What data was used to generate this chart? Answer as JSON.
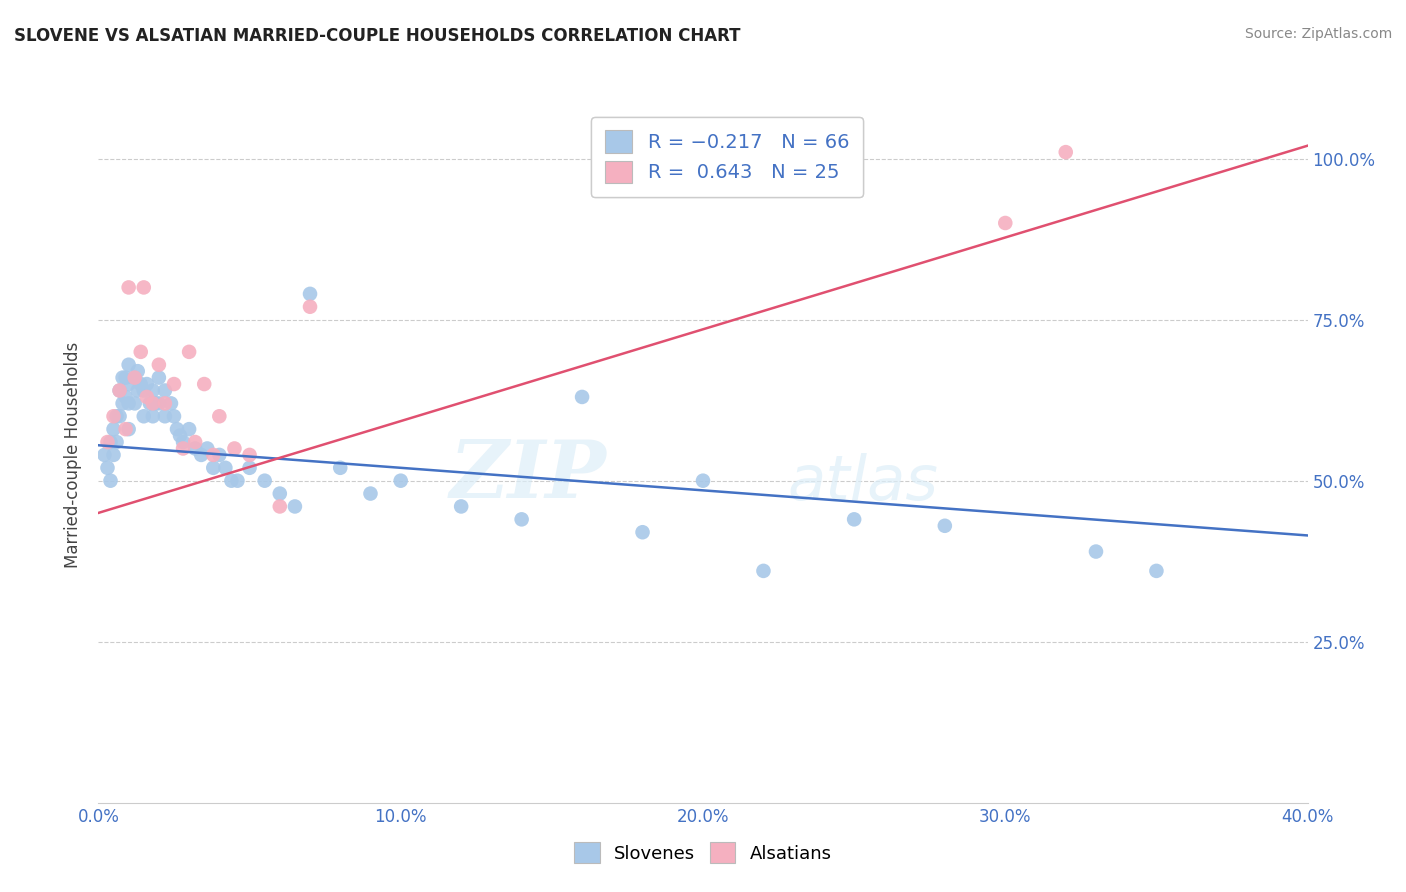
{
  "title": "SLOVENE VS ALSATIAN MARRIED-COUPLE HOUSEHOLDS CORRELATION CHART",
  "source": "Source: ZipAtlas.com",
  "xlabel_ticks": [
    "0.0%",
    "10.0%",
    "20.0%",
    "30.0%",
    "40.0%"
  ],
  "xlabel_tick_vals": [
    0.0,
    0.1,
    0.2,
    0.3,
    0.4
  ],
  "ylabel_ticks": [
    "25.0%",
    "50.0%",
    "75.0%",
    "100.0%"
  ],
  "ylabel_tick_vals": [
    0.25,
    0.5,
    0.75,
    1.0
  ],
  "ylabel_label": "Married-couple Households",
  "xlim": [
    0.0,
    0.4
  ],
  "ylim": [
    0.0,
    1.08
  ],
  "slovene_color": "#a8c8e8",
  "alsatian_color": "#f5b0c0",
  "slovene_line_color": "#4472c4",
  "alsatian_line_color": "#e05070",
  "watermark_zip": "ZIP",
  "watermark_atlas": "atlas",
  "slovene_x": [
    0.002,
    0.003,
    0.004,
    0.004,
    0.005,
    0.005,
    0.006,
    0.006,
    0.007,
    0.007,
    0.008,
    0.008,
    0.009,
    0.009,
    0.01,
    0.01,
    0.01,
    0.01,
    0.012,
    0.012,
    0.013,
    0.013,
    0.014,
    0.015,
    0.015,
    0.016,
    0.017,
    0.018,
    0.018,
    0.019,
    0.02,
    0.02,
    0.022,
    0.022,
    0.024,
    0.025,
    0.026,
    0.027,
    0.028,
    0.03,
    0.032,
    0.034,
    0.036,
    0.038,
    0.04,
    0.042,
    0.044,
    0.046,
    0.05,
    0.055,
    0.06,
    0.065,
    0.07,
    0.08,
    0.09,
    0.1,
    0.12,
    0.14,
    0.16,
    0.18,
    0.2,
    0.22,
    0.25,
    0.28,
    0.33,
    0.35
  ],
  "slovene_y": [
    0.54,
    0.52,
    0.56,
    0.5,
    0.58,
    0.54,
    0.6,
    0.56,
    0.64,
    0.6,
    0.66,
    0.62,
    0.66,
    0.63,
    0.68,
    0.65,
    0.62,
    0.58,
    0.66,
    0.62,
    0.67,
    0.64,
    0.65,
    0.64,
    0.6,
    0.65,
    0.62,
    0.64,
    0.6,
    0.62,
    0.66,
    0.62,
    0.64,
    0.6,
    0.62,
    0.6,
    0.58,
    0.57,
    0.56,
    0.58,
    0.55,
    0.54,
    0.55,
    0.52,
    0.54,
    0.52,
    0.5,
    0.5,
    0.52,
    0.5,
    0.48,
    0.46,
    0.79,
    0.52,
    0.48,
    0.5,
    0.46,
    0.44,
    0.63,
    0.42,
    0.5,
    0.36,
    0.44,
    0.43,
    0.39,
    0.36
  ],
  "alsatian_x": [
    0.003,
    0.005,
    0.007,
    0.009,
    0.01,
    0.012,
    0.014,
    0.015,
    0.016,
    0.018,
    0.02,
    0.022,
    0.025,
    0.028,
    0.03,
    0.032,
    0.035,
    0.038,
    0.04,
    0.045,
    0.05,
    0.06,
    0.07,
    0.3,
    0.32
  ],
  "alsatian_y": [
    0.56,
    0.6,
    0.64,
    0.58,
    0.8,
    0.66,
    0.7,
    0.8,
    0.63,
    0.62,
    0.68,
    0.62,
    0.65,
    0.55,
    0.7,
    0.56,
    0.65,
    0.54,
    0.6,
    0.55,
    0.54,
    0.46,
    0.77,
    0.9,
    1.01
  ],
  "slovene_line_x0": 0.0,
  "slovene_line_y0": 0.555,
  "slovene_line_x1": 0.4,
  "slovene_line_y1": 0.415,
  "alsatian_line_x0": 0.0,
  "alsatian_line_y0": 0.45,
  "alsatian_line_x1": 0.4,
  "alsatian_line_y1": 1.02
}
